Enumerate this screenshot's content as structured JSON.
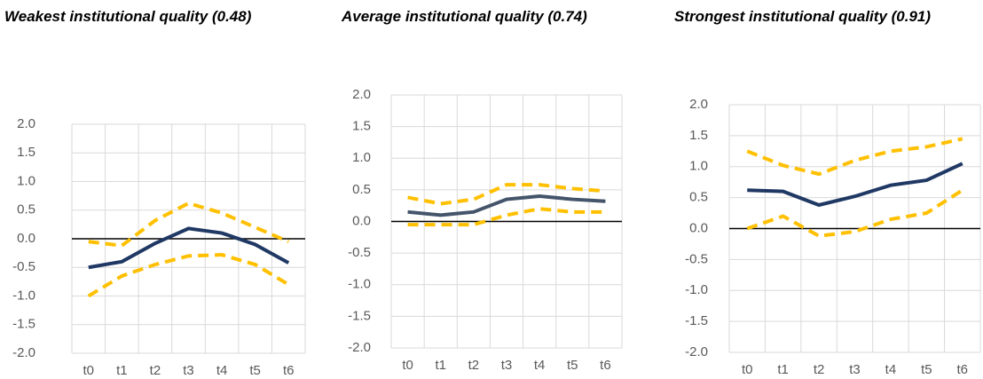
{
  "chart_data": [
    {
      "type": "line",
      "title": "Weakest institutional quality (0.48)",
      "categories": [
        "t0",
        "t1",
        "t2",
        "t3",
        "t4",
        "t5",
        "t6"
      ],
      "series": [
        {
          "color": "#ffc000",
          "dashed": true,
          "values": [
            -0.05,
            -0.12,
            0.32,
            0.62,
            0.45,
            0.2,
            -0.05
          ]
        },
        {
          "color": "#ffc000",
          "dashed": true,
          "values": [
            -1.0,
            -0.65,
            -0.45,
            -0.3,
            -0.28,
            -0.45,
            -0.8
          ]
        },
        {
          "color": "#1f3864",
          "dashed": false,
          "values": [
            -0.5,
            -0.4,
            -0.08,
            0.18,
            0.1,
            -0.1,
            -0.42
          ]
        }
      ],
      "ylim": [
        -2,
        2
      ],
      "yticks": [
        {
          "value": 2,
          "label": "2.0"
        },
        {
          "value": 1.5,
          "label": "1.5"
        },
        {
          "value": 1,
          "label": "1.0"
        },
        {
          "value": 0.5,
          "label": "0.5"
        },
        {
          "value": 0,
          "label": "0.0"
        },
        {
          "value": -0.5,
          "label": "-0.5"
        },
        {
          "value": -1,
          "label": "-1.0"
        },
        {
          "value": -1.5,
          "label": "-1.5"
        },
        {
          "value": -2,
          "label": "-2.0"
        }
      ],
      "grid": true
    },
    {
      "type": "line",
      "title": "Average institutional quality (0.74)",
      "categories": [
        "t0",
        "t1",
        "t2",
        "t3",
        "t4",
        "t5",
        "t6"
      ],
      "series": [
        {
          "color": "#ffc000",
          "dashed": true,
          "values": [
            0.38,
            0.28,
            0.35,
            0.58,
            0.58,
            0.52,
            0.48
          ]
        },
        {
          "color": "#ffc000",
          "dashed": true,
          "values": [
            -0.05,
            -0.05,
            -0.05,
            0.1,
            0.2,
            0.15,
            0.15
          ]
        },
        {
          "color": "#44546a",
          "dashed": false,
          "values": [
            0.15,
            0.1,
            0.15,
            0.35,
            0.4,
            0.35,
            0.32
          ]
        }
      ],
      "ylim": [
        -2,
        2
      ],
      "yticks": [
        {
          "value": 2,
          "label": "2.0"
        },
        {
          "value": 1.5,
          "label": "1.5"
        },
        {
          "value": 1,
          "label": "1.0"
        },
        {
          "value": 0.5,
          "label": "0.5"
        },
        {
          "value": 0,
          "label": "0.0"
        },
        {
          "value": -0.5,
          "label": "-0.5"
        },
        {
          "value": -1,
          "label": "-1.0"
        },
        {
          "value": -1.5,
          "label": "-1.5"
        },
        {
          "value": -2,
          "label": "-2.0"
        }
      ],
      "grid": true
    },
    {
      "type": "line",
      "title": "Strongest institutional quality (0.91)",
      "categories": [
        "t0",
        "t1",
        "t2",
        "t3",
        "t4",
        "t5",
        "t6"
      ],
      "series": [
        {
          "color": "#ffc000",
          "dashed": true,
          "values": [
            1.25,
            1.02,
            0.88,
            1.1,
            1.25,
            1.32,
            1.45
          ]
        },
        {
          "color": "#ffc000",
          "dashed": true,
          "values": [
            0.0,
            0.2,
            -0.12,
            -0.05,
            0.15,
            0.25,
            0.62
          ]
        },
        {
          "color": "#1f3864",
          "dashed": false,
          "values": [
            0.62,
            0.6,
            0.38,
            0.52,
            0.7,
            0.78,
            1.05
          ]
        }
      ],
      "ylim": [
        -2,
        2
      ],
      "yticks": [
        {
          "value": 2,
          "label": "2.0"
        },
        {
          "value": 1.5,
          "label": "1.5"
        },
        {
          "value": 1,
          "label": "1.0"
        },
        {
          "value": 0.5,
          "label": "0.5"
        },
        {
          "value": 0,
          "label": "0.0"
        },
        {
          "value": -0.5,
          "label": "-0.5"
        },
        {
          "value": -1,
          "label": "-1.0"
        },
        {
          "value": -1.5,
          "label": "-1.5"
        },
        {
          "value": -2,
          "label": "-2.0"
        }
      ],
      "grid": true
    }
  ]
}
